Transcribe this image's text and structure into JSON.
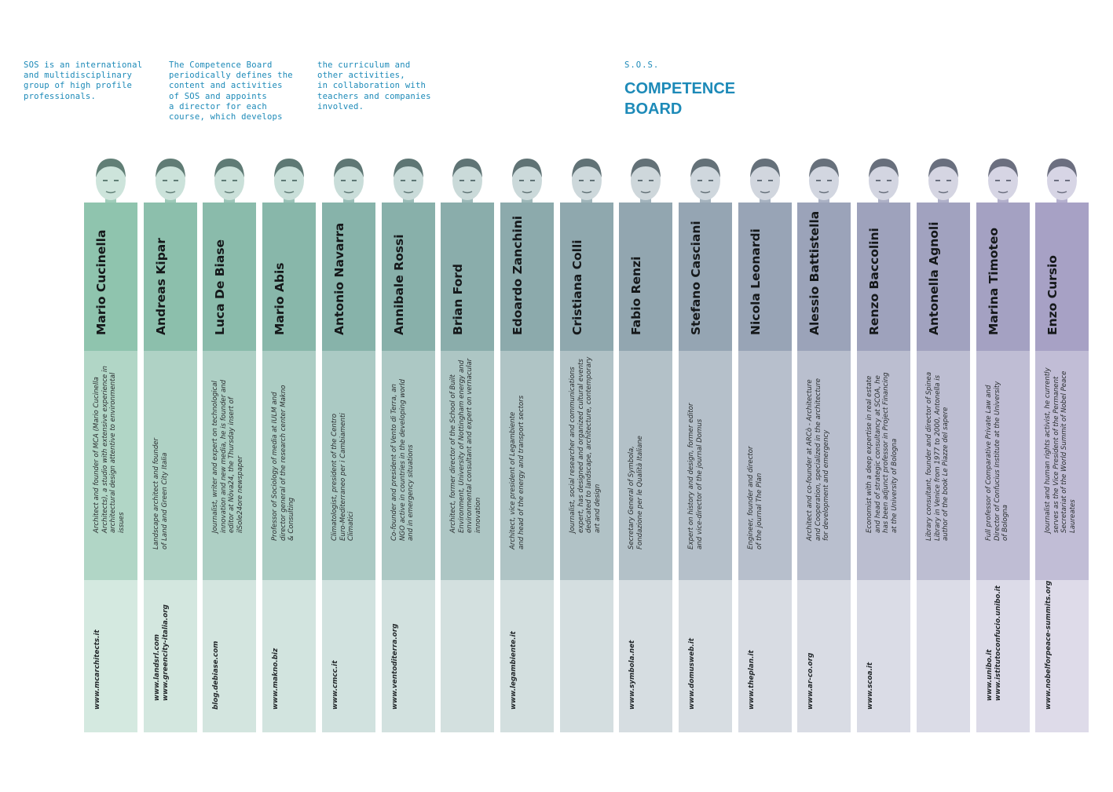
{
  "intro": {
    "col1": "SOS is an international\nand multidisciplinary\ngroup of high profile\nprofessionals.",
    "col2": "The Competence Board\nperiodically defines the\ncontent and activities\nof SOS and appoints\na director for each\ncourse, which develops",
    "col3": "the curriculum and\nother activities,\nin collaboration with\nteachers and companies\ninvolved."
  },
  "header": {
    "sos_label": "S.O.S.",
    "title_line1": "COMPETENCE",
    "title_line2": "BOARD"
  },
  "members": [
    {
      "name": "Mario Cucinella",
      "description": [
        "Architect and founder of MCA (Mario Cucinella",
        "Architects), a studio with extensive experience in",
        "architectural design attentive to environmental",
        "issues"
      ],
      "urls": [
        "www.mcarchitects.it"
      ],
      "color": "#8fc4ae"
    },
    {
      "name": "Andreas Kipar",
      "description": [
        "Landscape architect and founder",
        "of Land and Green City Italia"
      ],
      "urls": [
        "www.landsrl.com",
        "www.greencity-italia.org"
      ],
      "color": "#8cbfac"
    },
    {
      "name": "Luca De Biase",
      "description": [
        "Journalist, writer and expert on technological",
        "innovation and new media, he is founder and",
        "editor at Nòva24, the Thursday insert of",
        "ilSole24ore newspaper"
      ],
      "urls": [
        "blog.debiase.com"
      ],
      "color": "#8abbab"
    },
    {
      "name": "Mario Abis",
      "description": [
        "Professor of Sociology of media at IULM and",
        "director general of the research center Makno",
        "& Consulting"
      ],
      "urls": [
        "www.makno.biz"
      ],
      "color": "#88b7aa"
    },
    {
      "name": "Antonio Navarra",
      "description": [
        "Climatologist, president of the Centro",
        "Euro-Mediterraneo per i Cambiamenti",
        "Climatici"
      ],
      "urls": [
        "www.cmcc.it"
      ],
      "color": "#87b3aa"
    },
    {
      "name": "Annibale Rossi",
      "description": [
        "Co-founder and president of Vento di Terra, an",
        "NGO active in countries in the developing world",
        "and in emergency situations"
      ],
      "urls": [
        "www.ventoditerra.org"
      ],
      "color": "#88b0aa"
    },
    {
      "name": "Brian Ford",
      "description": [
        "Architect, former director of the School of Built",
        "Environment, University of Nottingham energy and",
        "environmental consultant and expert on vernacular",
        "innovation"
      ],
      "urls": [],
      "color": "#8aadab"
    },
    {
      "name": "Edoardo Zanchini",
      "description": [
        "Architect, vice president of Legambiente",
        "and head of the energy and transport sectors"
      ],
      "urls": [
        "www.legambiente.it"
      ],
      "color": "#8caaac"
    },
    {
      "name": "Cristiana Colli",
      "description": [
        "Journalist, social researcher and communications",
        "expert, has designed and organized cultural events",
        "dedicated to landscape, architecture, contemporary",
        "art and design"
      ],
      "urls": [],
      "color": "#8fa8ae"
    },
    {
      "name": "Fabio Renzi",
      "description": [
        "Secretary General of Symbola,",
        "Fondazione per le Qualità Italiane"
      ],
      "urls": [
        "www.symbola.net"
      ],
      "color": "#92a6b0"
    },
    {
      "name": "Stefano Casciani",
      "description": [
        "Expert on history and design, former editor",
        "and vice-director of the journal Domus"
      ],
      "urls": [
        "www.domusweb.it"
      ],
      "color": "#95a5b3"
    },
    {
      "name": "Nicola Leonardi",
      "description": [
        "Engineer, founder and director",
        "of the journal The Plan"
      ],
      "urls": [
        "www.theplan.it"
      ],
      "color": "#98a4b6"
    },
    {
      "name": "Alessio Battistella",
      "description": [
        "Architect and co-founder at ARCò - Architecture",
        "and Cooperation, specialized in the architecture",
        "for development and emergency"
      ],
      "urls": [
        "www.ar-co.org"
      ],
      "color": "#9ba3b9"
    },
    {
      "name": "Renzo Baccolini",
      "description": [
        "Economist with a deep expertise in real estate",
        "and head of strategic consultancy at SCOA, he",
        "has been adjunct professor in Project Financing",
        "at the University of Bologna"
      ],
      "urls": [
        "www.scoa.it"
      ],
      "color": "#9ea2bc"
    },
    {
      "name": "Antonella Agnoli",
      "description": [
        "Library consultant, founder and director of Spinea",
        "Library in Venice from 1977 to 2000, Antonella is",
        "author of the book Le Piazze del sapere"
      ],
      "urls": [],
      "color": "#a1a2bf"
    },
    {
      "name": "Marina Timoteo",
      "description": [
        "Full professor of Comparative Private Law and",
        "Director of Confucius Institute at the University",
        "of Bologna"
      ],
      "urls": [
        "www.unibo.it",
        "www.istitutoconfucio.unibo.it"
      ],
      "color": "#a4a1c2"
    },
    {
      "name": "Enzo Cursio",
      "description": [
        "Journalist and human rights activist, he currently",
        "serves as the Vice President of the Permanent",
        "Secretariat of the World Summit of Nobel Peace",
        "Laureates"
      ],
      "urls": [
        "www.nobelforpeace-summits.org"
      ],
      "color": "#a7a1c5"
    }
  ]
}
